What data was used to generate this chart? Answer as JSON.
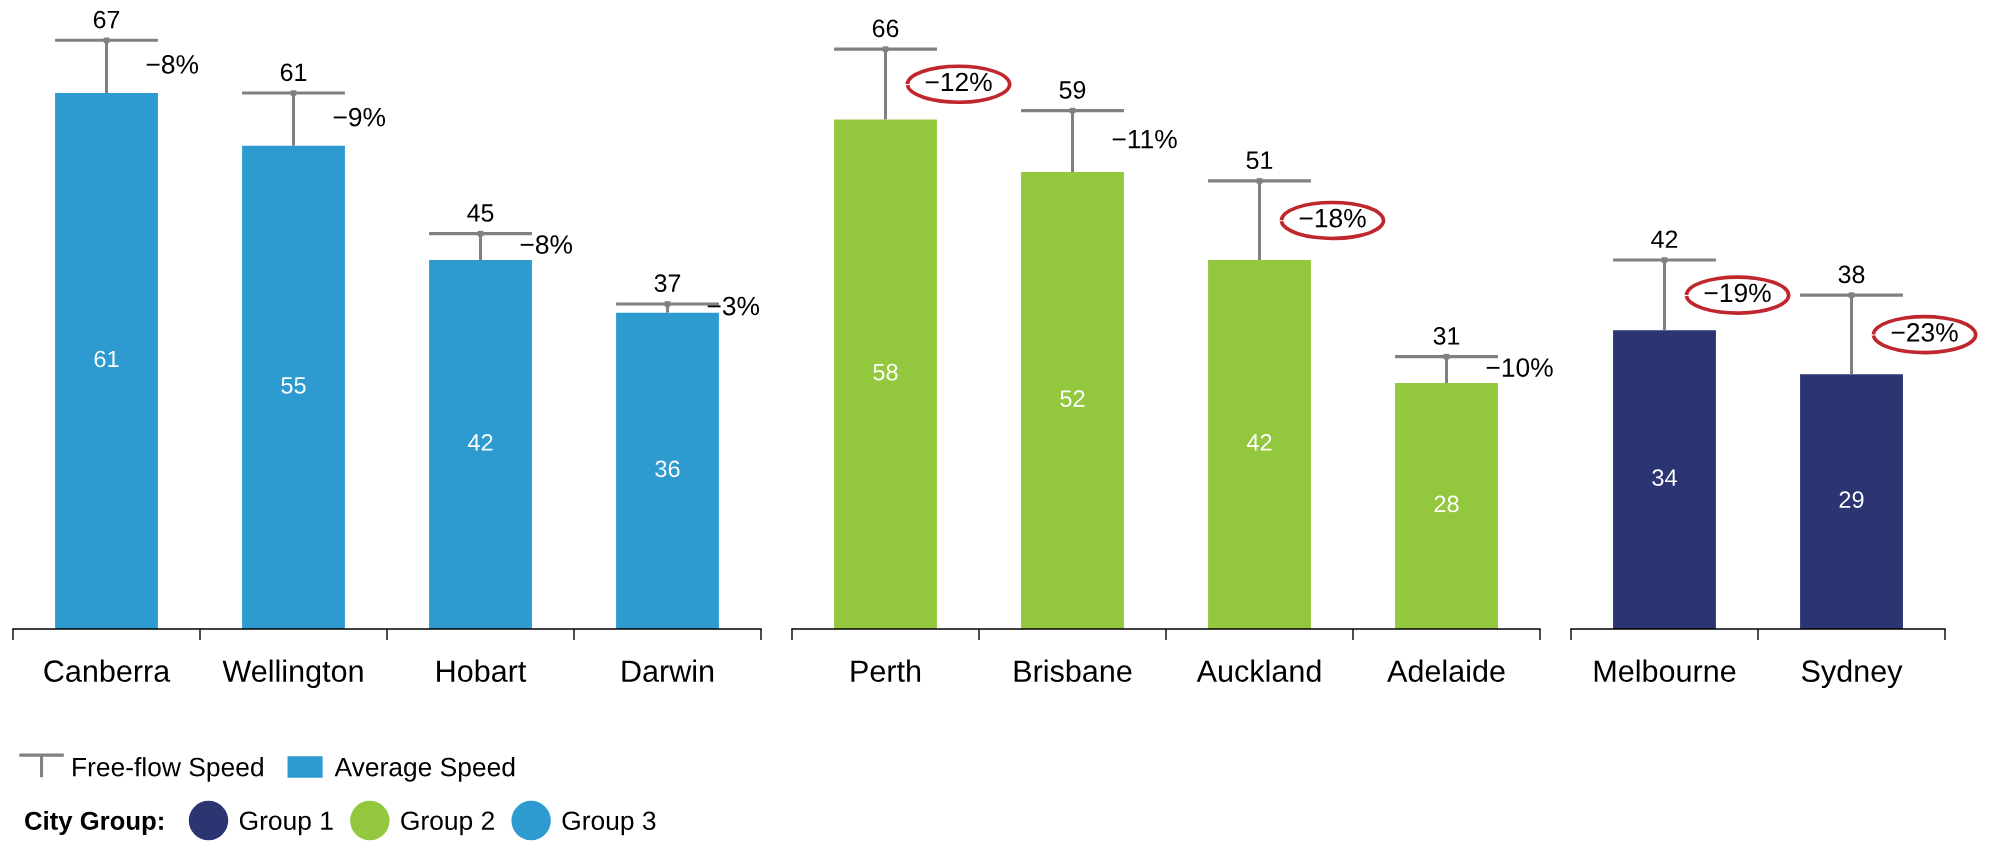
{
  "chart_data": [
    {
      "type": "bar",
      "categories": [
        "Canberra",
        "Wellington",
        "Hobart",
        "Darwin"
      ],
      "series": [
        {
          "name": "Group 3",
          "color": "#2e9bd0",
          "values": [
            61,
            55,
            42,
            36
          ]
        },
        {
          "name": "Free-flow Speed",
          "type": "scatter",
          "color": "#808080",
          "values": [
            67,
            61,
            45,
            37
          ]
        }
      ],
      "tick_labels": "x",
      "data_labels": true,
      "legend": "bottom left",
      "legend_title": "City Group:",
      "annotations": [
        "Average Speed",
        {
          "text": "−8%",
          "x": "Canberra",
          "y": 67
        },
        {
          "text": "−9%",
          "x": "Wellington",
          "y": 61
        },
        {
          "text": "−8%",
          "x": "Hobart",
          "y": 45
        },
        {
          "text": "−3%",
          "x": "Darwin",
          "y": 37
        }
      ]
    },
    {
      "type": "bar",
      "categories": [
        "Perth",
        "Brisbane",
        "Auckland",
        "Adelaide"
      ],
      "series": [
        {
          "name": "Group 2",
          "color": "#93c83e",
          "values": [
            58,
            52,
            42,
            28
          ]
        },
        {
          "type": "scatter",
          "color": "#808080",
          "values": [
            66,
            59,
            51,
            31
          ]
        }
      ],
      "tick_labels": "x",
      "data_labels": true,
      "annotations": [
        {
          "text": "−12%",
          "x": "Perth",
          "y": 66
        },
        {
          "text": "−11%",
          "x": "Brisbane",
          "y": 59
        },
        {
          "text": "−18%",
          "x": "Auckland",
          "y": 51
        },
        {
          "text": "−10%",
          "x": "Adelaide",
          "y": 31
        }
      ]
    },
    {
      "type": "bar",
      "categories": [
        "Melbourne",
        "Sydney"
      ],
      "series": [
        {
          "name": "Group 1",
          "color": "#2a3572",
          "values": [
            34,
            29
          ]
        },
        {
          "type": "scatter",
          "color": "#808080",
          "values": [
            42,
            38
          ]
        }
      ],
      "tick_labels": "x",
      "data_labels": true,
      "annotations": [
        {
          "text": "−19%",
          "x": "Melbourne",
          "y": 42
        },
        {
          "text": "−23%",
          "x": "Sydney",
          "y": 38
        }
      ]
    }
  ]
}
